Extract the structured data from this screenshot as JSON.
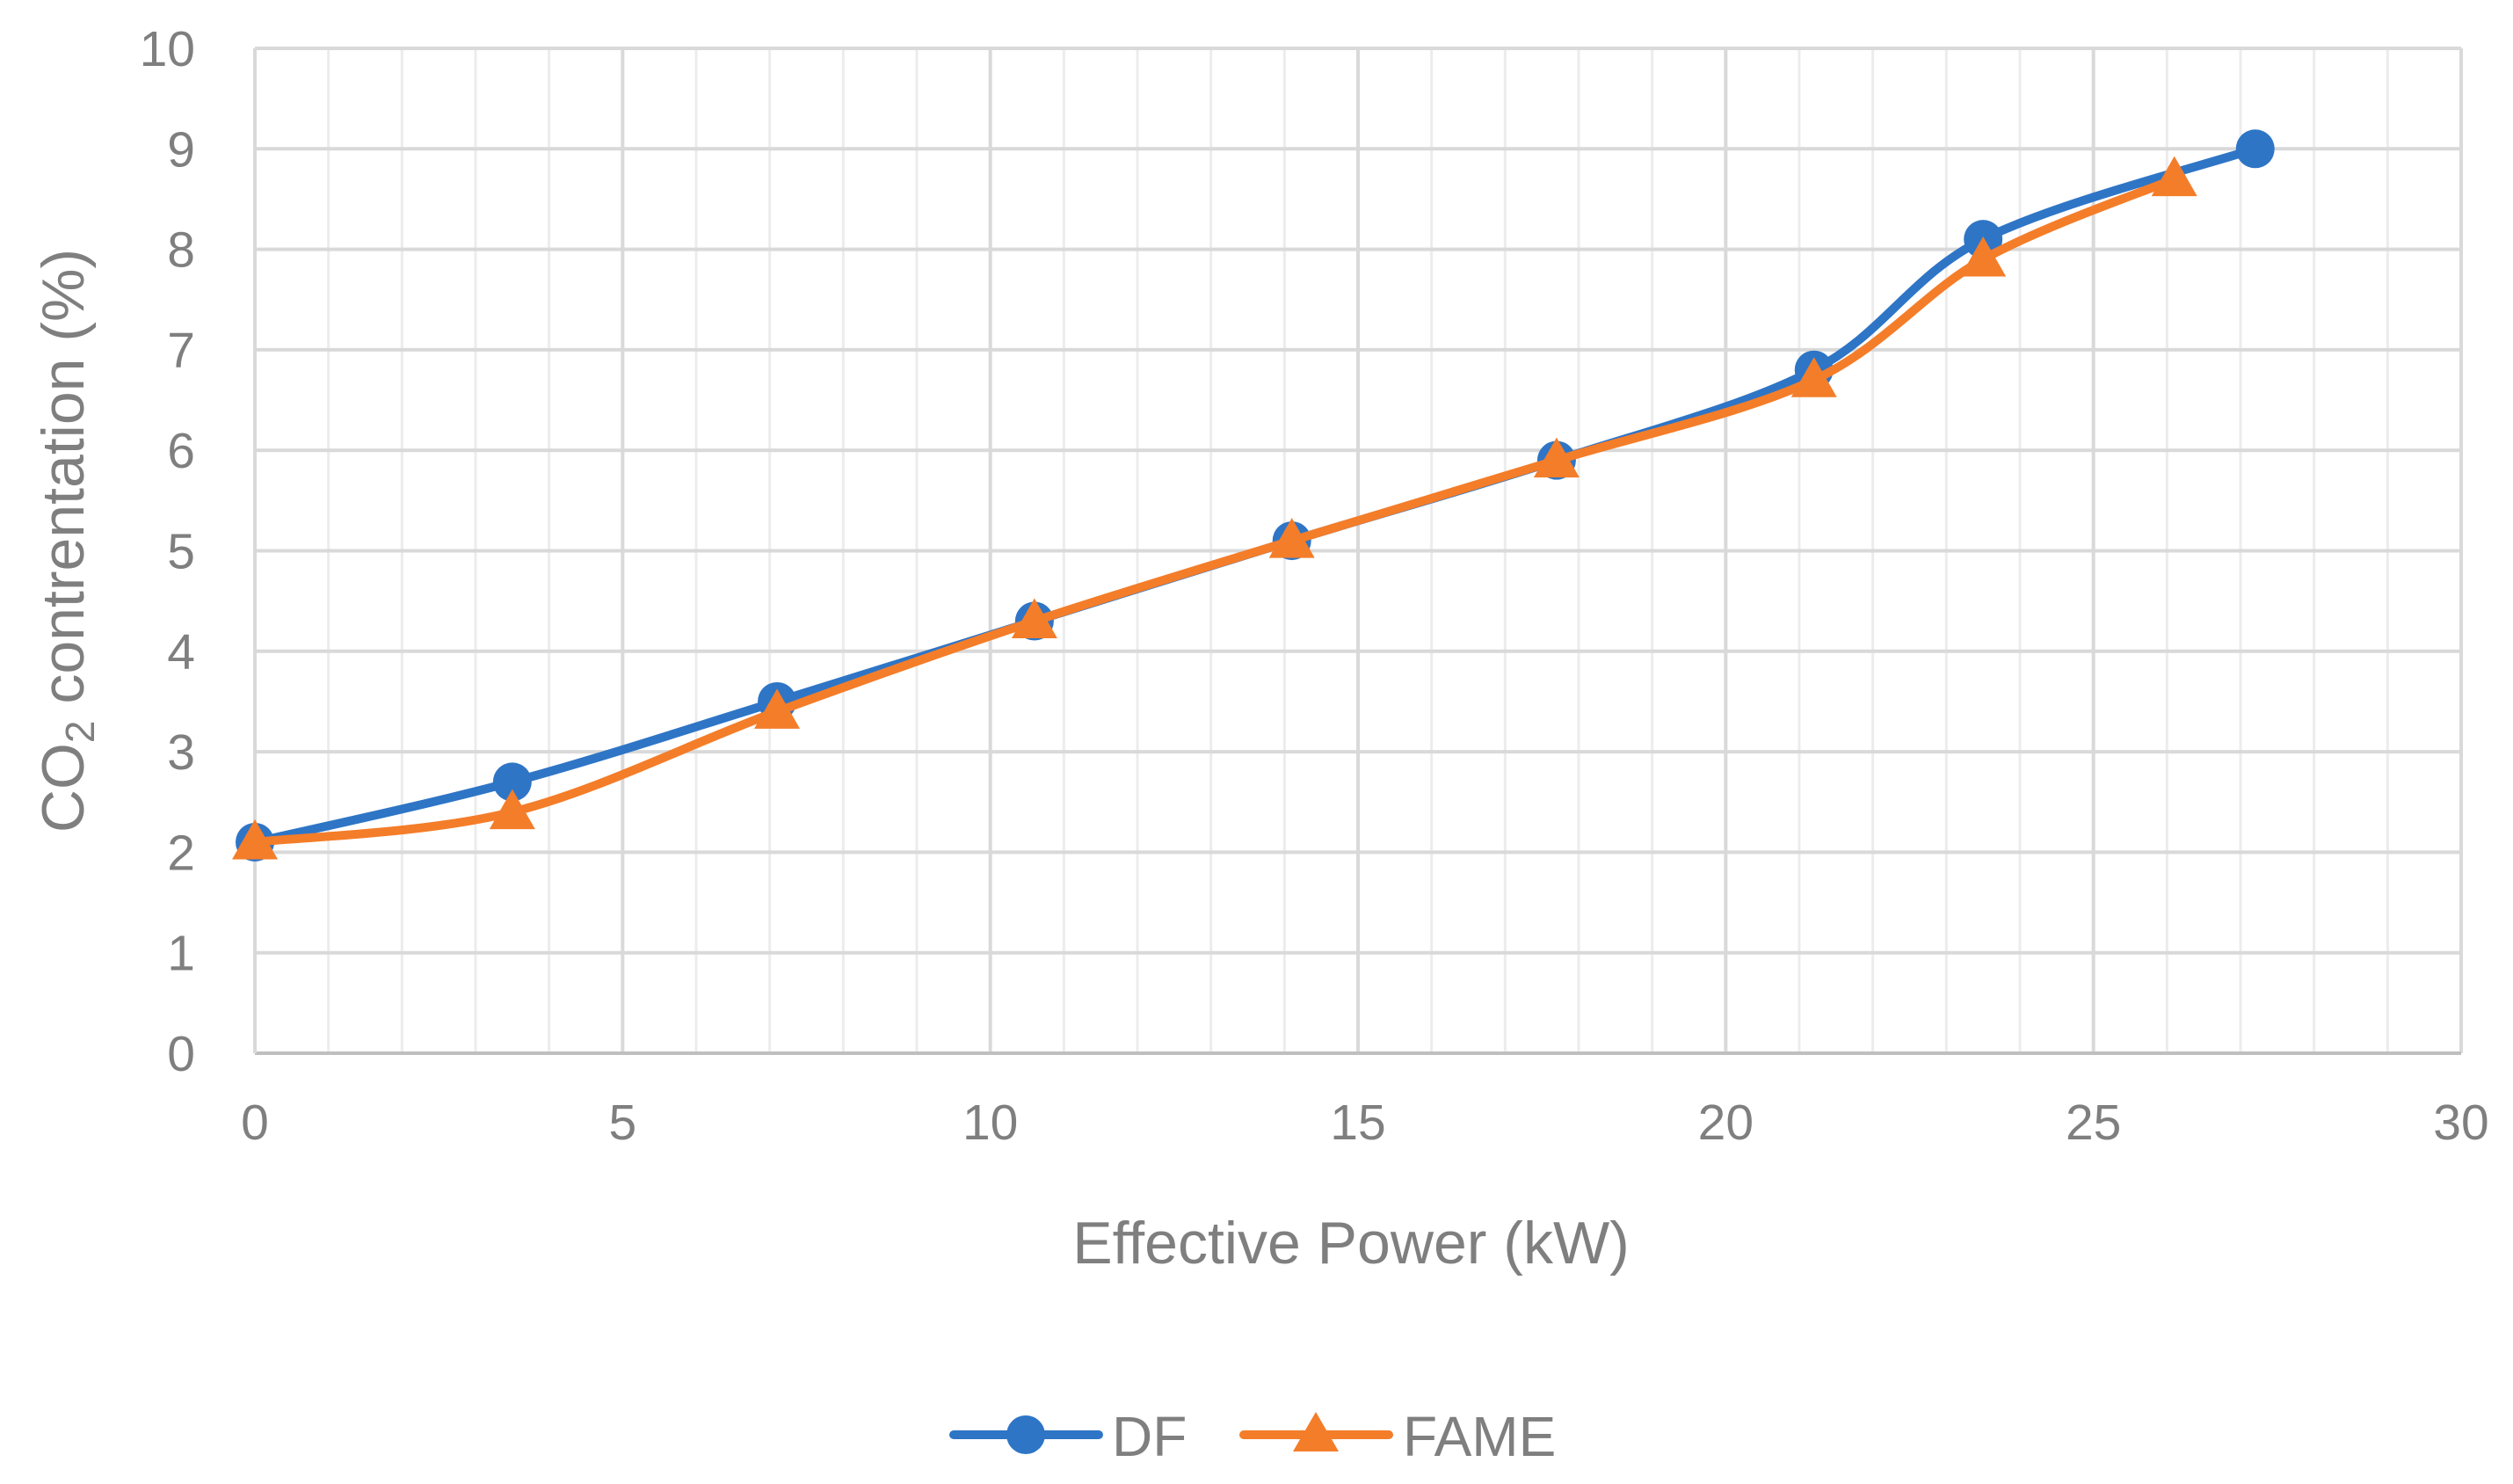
{
  "chart_data": {
    "type": "line",
    "smooth": true,
    "xlabel": "Effective Power (kW)",
    "ylabel": {
      "prefix": "CO",
      "subscript": "2",
      "suffix": " contrentation (%)"
    },
    "xlim": [
      0,
      30
    ],
    "ylim": [
      0,
      10
    ],
    "xticks": [
      0,
      5,
      10,
      15,
      20,
      25,
      30
    ],
    "yticks": [
      0,
      1,
      2,
      3,
      4,
      5,
      6,
      7,
      8,
      9,
      10
    ],
    "x_minor_step": 1,
    "grid": true,
    "legend_position": "bottom",
    "series": [
      {
        "name": "DF",
        "color": "#2e75c6",
        "marker": "circle",
        "x": [
          0,
          3.5,
          7.1,
          10.6,
          14.1,
          17.7,
          21.2,
          23.5,
          27.2
        ],
        "y": [
          2.1,
          2.7,
          3.5,
          4.3,
          5.1,
          5.9,
          6.8,
          8.1,
          9.0
        ]
      },
      {
        "name": "FAME",
        "color": "#f47d29",
        "marker": "triangle",
        "x": [
          0,
          3.5,
          7.1,
          10.6,
          14.1,
          17.7,
          21.2,
          23.5,
          26.1
        ],
        "y": [
          2.1,
          2.4,
          3.4,
          4.3,
          5.1,
          5.9,
          6.7,
          7.9,
          8.7
        ]
      }
    ]
  }
}
